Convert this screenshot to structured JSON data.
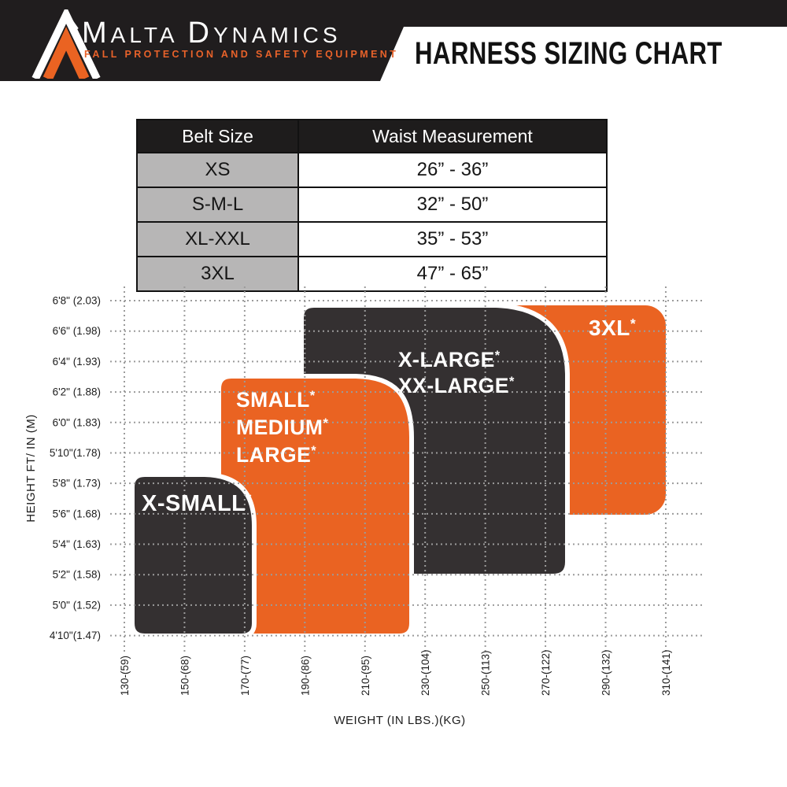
{
  "header": {
    "brand": {
      "word1_initial": "M",
      "word1_rest": "ALTA",
      "word2_initial": "D",
      "word2_rest": "YNAMICS",
      "tagline": "FALL PROTECTION AND SAFETY EQUIPMENT"
    },
    "title": "HARNESS SIZING CHART"
  },
  "colors": {
    "orange": "#ea6322",
    "region_dark": "#343031",
    "banner_black": "#201d1e",
    "cell_gray": "#b7b6b6",
    "grid_gray": "#9b9b9b"
  },
  "size_table": {
    "headers": [
      "Belt Size",
      "Waist Measurement"
    ],
    "rows": [
      {
        "size": "XS",
        "waist": "26” - 36”"
      },
      {
        "size": "S-M-L",
        "waist": "32” - 50”"
      },
      {
        "size": "XL-XXL",
        "waist": "35” - 53”"
      },
      {
        "size": "3XL",
        "waist": "47” - 65”"
      }
    ]
  },
  "chart_data": {
    "type": "area",
    "title": "Harness size zones by height and weight",
    "xlabel": "WEIGHT (IN LBS.)(KG)",
    "ylabel": "HEIGHT FT/ IN (M)",
    "grid": true,
    "x_ticks": [
      "130-(59)",
      "150-(68)",
      "170-(77)",
      "190-(86)",
      "210-(95)",
      "230-(104)",
      "250-(113)",
      "270-(122)",
      "290-(132)",
      "310-(141)"
    ],
    "y_ticks": [
      "6'8\" (2.03)",
      "6'6\" (1.98)",
      "6'4\" (1.93)",
      "6'2\" (1.88)",
      "6'0\" (1.83)",
      "5'10\"(1.78)",
      "5'8\" (1.73)",
      "5'6\" (1.68)",
      "5'4\" (1.63)",
      "5'2\" (1.58)",
      "5'0\" (1.52)",
      "4'10\"(1.47)"
    ],
    "x_range_lbs": [
      130,
      310
    ],
    "y_range_ftin": [
      "4'10\"",
      "6'8\""
    ],
    "regions": [
      {
        "label": "X-SMALL",
        "asterisk": "*",
        "color": "#343031",
        "approx_weight_lbs": [
          130,
          173
        ],
        "approx_height": [
          "4'10\"",
          "5'9\""
        ]
      },
      {
        "lines": [
          "SMALL",
          "MEDIUM",
          "LARGE"
        ],
        "asterisk": "*",
        "color": "#ea6322",
        "approx_weight_lbs": [
          161,
          225
        ],
        "approx_height": [
          "4'10\"",
          "6'3\""
        ]
      },
      {
        "lines": [
          "X-LARGE",
          "XX-LARGE"
        ],
        "asterisk": "*",
        "color": "#343031",
        "approx_weight_lbs": [
          189,
          277
        ],
        "approx_height": [
          "5'2\"",
          "6'8\""
        ]
      },
      {
        "label": "3XL",
        "asterisk": "*",
        "color": "#ea6322",
        "approx_weight_lbs": [
          254,
          310
        ],
        "approx_height": [
          "5'6\"",
          "6'8\""
        ]
      }
    ]
  }
}
